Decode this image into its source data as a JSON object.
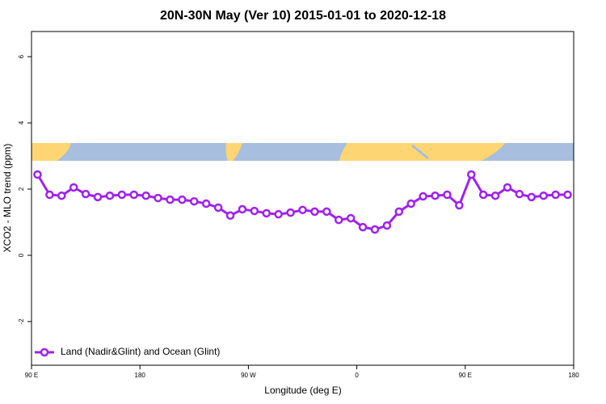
{
  "chart_data": {
    "type": "line",
    "title": "20N-30N May (Ver 10)   2015-01-01 to 2020-12-18",
    "x_label": "Longitude (deg E)",
    "y_label": "XCO2 - MLO trend (ppm)",
    "x": [
      95,
      105,
      115,
      125,
      135,
      145,
      155,
      165,
      175,
      185,
      195,
      205,
      215,
      225,
      235,
      245,
      255,
      265,
      275,
      285,
      295,
      305,
      315,
      325,
      335,
      345,
      355,
      365,
      375,
      385,
      395,
      405,
      415,
      425,
      435,
      445,
      455,
      465,
      475,
      485,
      495,
      505,
      515,
      525,
      535
    ],
    "series": [
      {
        "name": "Land (Nadir&Glint) and Ocean (Glint)",
        "color": "#a020f0",
        "values": [
          2.44,
          1.83,
          1.8,
          2.05,
          1.85,
          1.76,
          1.8,
          1.83,
          1.83,
          1.8,
          1.73,
          1.68,
          1.68,
          1.63,
          1.56,
          1.44,
          1.2,
          1.39,
          1.34,
          1.27,
          1.24,
          1.29,
          1.37,
          1.32,
          1.32,
          1.07,
          1.12,
          0.85,
          0.78,
          0.9,
          1.32,
          1.56,
          1.78,
          1.8,
          1.83,
          1.51,
          2.44,
          1.83,
          1.8,
          2.05,
          1.85,
          1.76,
          1.8,
          1.83,
          1.83
        ]
      }
    ],
    "xlim": [
      90,
      540
    ],
    "xticks": [
      {
        "value": 90,
        "label": "90 E"
      },
      180,
      {
        "value": 270,
        "label": "90 W"
      },
      {
        "value": 360,
        "label": "0"
      },
      {
        "value": 450,
        "label": "90 E"
      },
      {
        "value": 540,
        "label": "180"
      }
    ],
    "ylim": [
      -3.32,
      6.76
    ],
    "yticks": [
      -2,
      0,
      2,
      4,
      6
    ],
    "legend": "bottom-left"
  }
}
